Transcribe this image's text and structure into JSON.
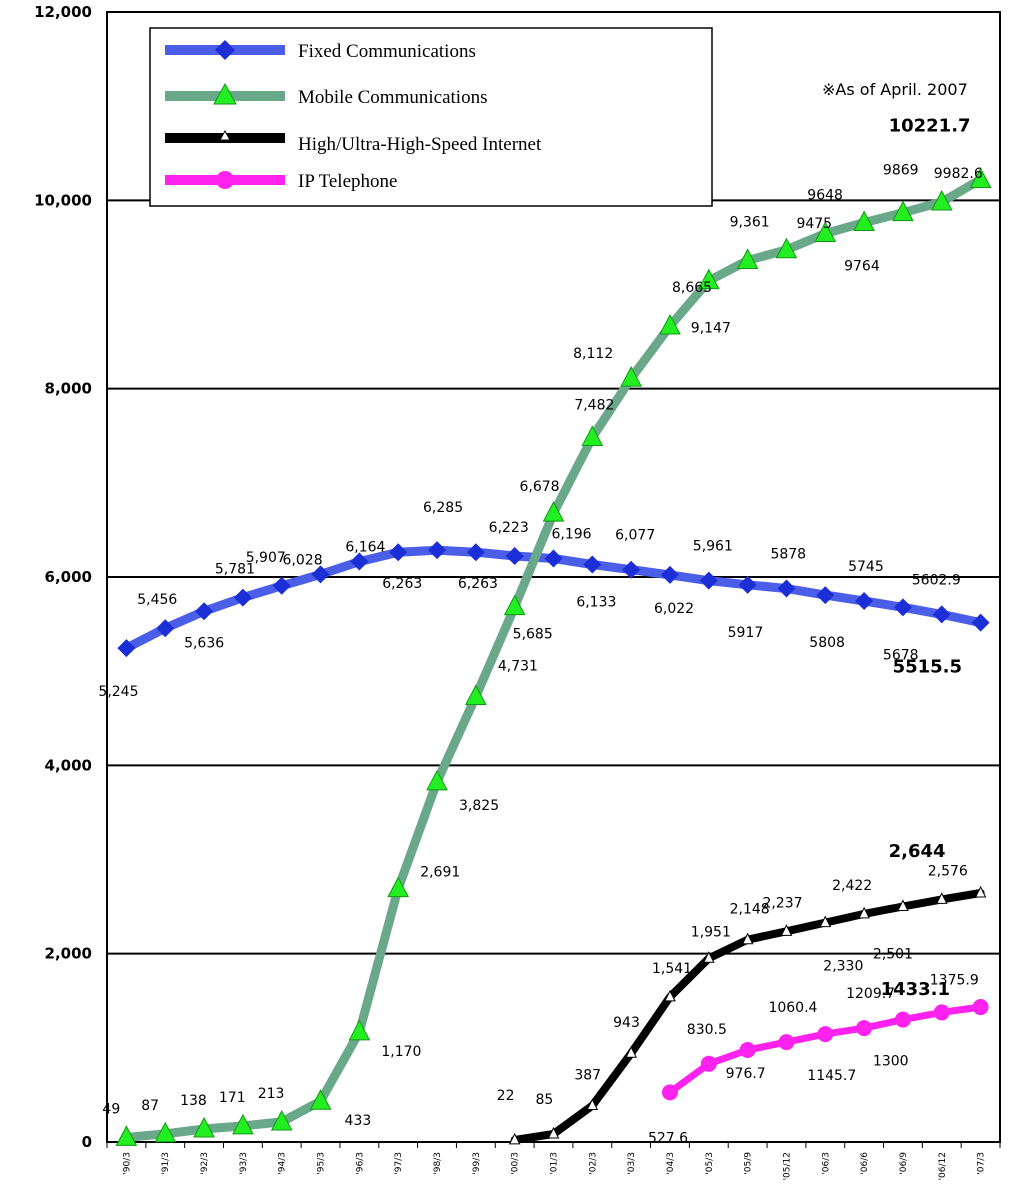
{
  "note": "※As of April. 2007",
  "colors": {
    "fixed": "#4a5ee8",
    "fixed_marker": "#1c2fd6",
    "mobile": "#6aa88a",
    "mobile_marker": "#22ee22",
    "internet": "#000000",
    "ip": "#ff22ee"
  },
  "chart_data": {
    "type": "line",
    "categories": [
      "'90/3",
      "'91/3",
      "'92/3",
      "'93/3",
      "'94/3",
      "'95/3",
      "'96/3",
      "'97/3",
      "'98/3",
      "'99/3",
      "'00/3",
      "'01/3",
      "'02/3",
      "'03/3",
      "'04/3",
      "'05/3",
      "'05/9",
      "'05/12",
      "'06/3",
      "'06/6",
      "'06/9",
      "'06/12",
      "'07/3"
    ],
    "ylim": [
      0,
      12000
    ],
    "yticks": [
      "0",
      "2,000",
      "4,000",
      "6,000",
      "8,000",
      "10,000",
      "12,000"
    ],
    "grid": true,
    "legend_position": "top-left",
    "series": [
      {
        "name": "Fixed Communications",
        "marker": "diamond",
        "values": [
          5245,
          5456,
          5636,
          5781,
          5907,
          6028,
          6164,
          6263,
          6285,
          6263,
          6223,
          6196,
          6133,
          6077,
          6022,
          5961,
          5917,
          5878,
          5808,
          5745,
          5678,
          5602.9,
          5515.5
        ],
        "labels": [
          "5,245",
          "5,456",
          "5,636",
          "5,781",
          "5,907",
          "6,028",
          "6,164",
          "6,263",
          "6,285",
          "6,263",
          "6,223",
          "6,196",
          "6,133",
          "6,077",
          "6,022",
          "5,961",
          "5917",
          "5878",
          "5808",
          "5745",
          "5678",
          "5602.9",
          "5515.5"
        ]
      },
      {
        "name": "Mobile Communications",
        "marker": "triangle",
        "values": [
          49,
          87,
          138,
          171,
          213,
          433,
          1170,
          2691,
          3825,
          4731,
          5685,
          6678,
          7482,
          8112,
          8665,
          9147,
          9361,
          9475,
          9648,
          9764,
          9869,
          9982.6,
          10221.7
        ],
        "labels": [
          "49",
          "87",
          "138",
          "171",
          "213",
          "433",
          "1,170",
          "2,691",
          "3,825",
          "4,731",
          "5,685",
          "6,678",
          "7,482",
          "8,112",
          "8,665",
          "9,147",
          "9,361",
          "9475",
          "9648",
          "9764",
          "9869",
          "9982.6",
          "10221.7"
        ]
      },
      {
        "name": "High/Ultra-High-Speed Internet",
        "marker": "small-triangle",
        "values": [
          null,
          null,
          null,
          null,
          null,
          null,
          null,
          null,
          null,
          null,
          22,
          85,
          387,
          943,
          1541,
          1951,
          2148,
          2237,
          2330,
          2422,
          2501,
          2576,
          2644
        ],
        "labels": [
          "",
          "",
          "",
          "",
          "",
          "",
          "",
          "",
          "",
          "",
          "22",
          "85",
          "387",
          "943",
          "1,541",
          "1,951",
          "2,148",
          "2,237",
          "2,330",
          "2,422",
          "2,501",
          "2,576",
          "2,644"
        ]
      },
      {
        "name": "IP Telephone",
        "marker": "circle",
        "values": [
          null,
          null,
          null,
          null,
          null,
          null,
          null,
          null,
          null,
          null,
          null,
          null,
          null,
          null,
          527.6,
          830.5,
          976.7,
          1060.4,
          1145.7,
          1209.7,
          1300,
          1375.9,
          1433.1
        ],
        "labels": [
          "",
          "",
          "",
          "",
          "",
          "",
          "",
          "",
          "",
          "",
          "",
          "",
          "",
          "",
          "527.6",
          "830.5",
          "976.7",
          "1060.4",
          "1145.7",
          "1209.7",
          "1300",
          "1375.9",
          "1433.1"
        ]
      }
    ]
  }
}
